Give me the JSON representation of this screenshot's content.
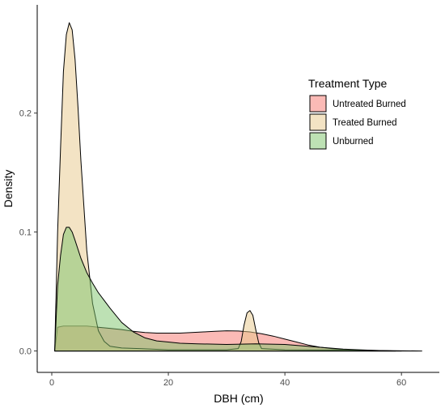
{
  "chart_data": {
    "type": "area",
    "title": "",
    "xlabel": "DBH (cm)",
    "ylabel": "Density",
    "xlim": [
      -2.5,
      66.5
    ],
    "ylim": [
      -0.018,
      0.291
    ],
    "x_ticks": [
      0,
      20,
      40,
      60
    ],
    "x_tick_labels": [
      "0",
      "20",
      "40",
      "60"
    ],
    "y_ticks": [
      0.0,
      0.1,
      0.2
    ],
    "y_tick_labels": [
      "0.0",
      "0.1",
      "0.2"
    ],
    "grid": false,
    "legend": {
      "title": "Treatment Type",
      "position": "right-inside-top",
      "entries": [
        "Untreated Burned",
        "Treated Burned",
        "Unburned"
      ]
    },
    "series": [
      {
        "name": "Untreated Burned",
        "color": "#f8766d",
        "x": [
          0.5,
          1,
          2,
          4,
          6,
          8,
          10,
          12,
          14,
          16,
          18,
          20,
          22,
          24,
          26,
          28,
          30,
          32,
          34,
          36,
          38,
          40,
          42,
          44,
          46,
          48,
          50,
          52,
          54,
          56,
          58,
          60
        ],
        "y": [
          0.0,
          0.02,
          0.021,
          0.021,
          0.021,
          0.02,
          0.019,
          0.018,
          0.0165,
          0.0155,
          0.015,
          0.015,
          0.015,
          0.0155,
          0.016,
          0.0165,
          0.017,
          0.0168,
          0.016,
          0.0145,
          0.0125,
          0.01,
          0.0075,
          0.005,
          0.0032,
          0.002,
          0.0012,
          0.0007,
          0.0003,
          0.0001,
          0.0,
          0.0
        ]
      },
      {
        "name": "Treated Burned",
        "color": "#e8c88a",
        "x": [
          0.5,
          1,
          1.5,
          2,
          2.5,
          3,
          3.5,
          4,
          4.5,
          5,
          6,
          7,
          8,
          9,
          10,
          12,
          15,
          20,
          25,
          30,
          32,
          32.5,
          33,
          33.5,
          34,
          34.5,
          35,
          35.5,
          36,
          40,
          50,
          63.5
        ],
        "y": [
          0.0,
          0.1,
          0.17,
          0.235,
          0.266,
          0.276,
          0.27,
          0.245,
          0.205,
          0.16,
          0.085,
          0.04,
          0.017,
          0.008,
          0.004,
          0.0025,
          0.002,
          0.001,
          0.001,
          0.001,
          0.002,
          0.008,
          0.022,
          0.032,
          0.034,
          0.03,
          0.018,
          0.007,
          0.002,
          0.001,
          0.0008,
          0.0
        ]
      },
      {
        "name": "Unburned",
        "color": "#7cc36a",
        "x": [
          0.5,
          1,
          1.5,
          2,
          2.5,
          3,
          3.5,
          4,
          5,
          6,
          7,
          8,
          10,
          12,
          14,
          16,
          18,
          20,
          22,
          25,
          30,
          35,
          40,
          45,
          50,
          55,
          59
        ],
        "y": [
          0.0,
          0.055,
          0.08,
          0.098,
          0.104,
          0.104,
          0.1,
          0.093,
          0.078,
          0.066,
          0.057,
          0.049,
          0.036,
          0.024,
          0.016,
          0.011,
          0.0085,
          0.0075,
          0.0065,
          0.006,
          0.0055,
          0.006,
          0.0055,
          0.0035,
          0.0015,
          0.0005,
          0.0
        ]
      }
    ]
  }
}
